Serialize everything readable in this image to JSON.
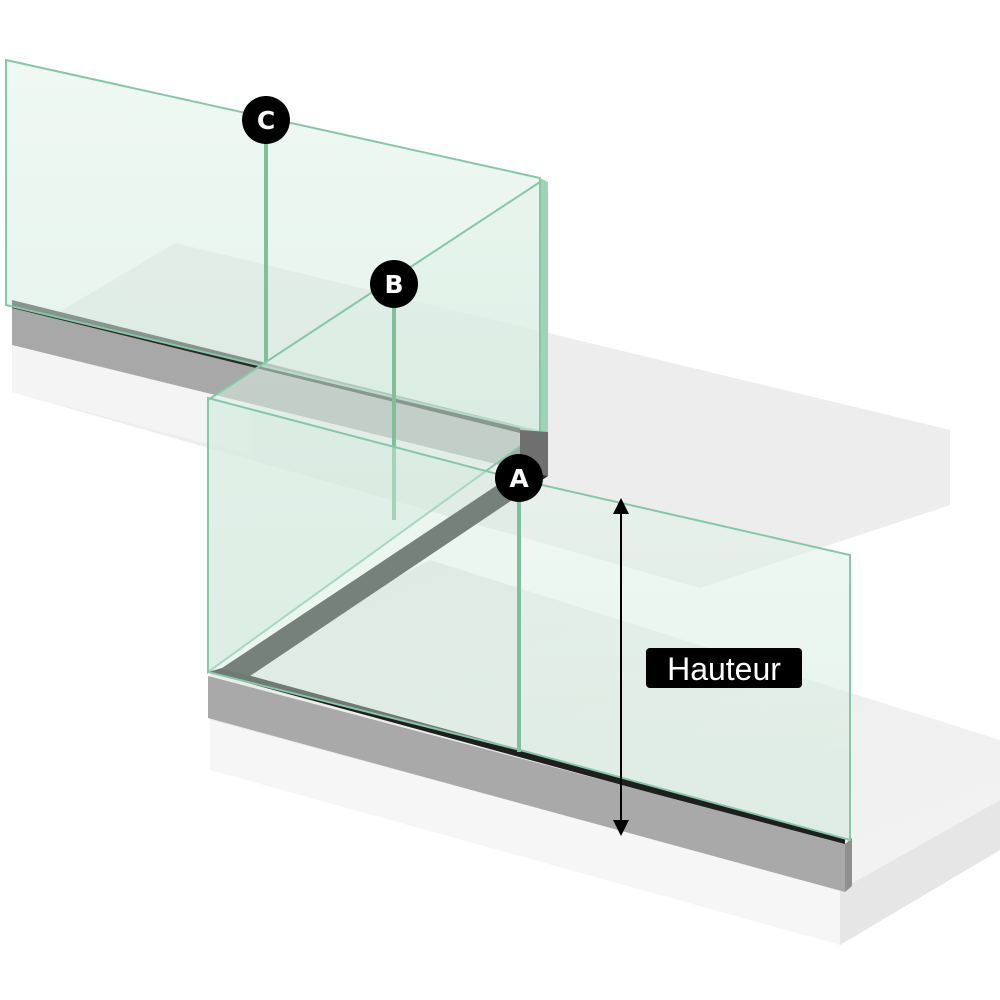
{
  "diagram": {
    "markers": {
      "a": "A",
      "b": "B",
      "c": "C"
    },
    "height_label": "Hauteur"
  },
  "colors": {
    "glass_fill": "#d9efe4",
    "glass_edge": "#86c7a6",
    "profile_top": "#2a2a2a",
    "profile_side": "#a9a9a9",
    "slab_top": "#ececec",
    "slab_side": "#f6f6f6",
    "marker_fill": "#000000",
    "label_fill": "#000000",
    "label_text": "#ffffff"
  }
}
